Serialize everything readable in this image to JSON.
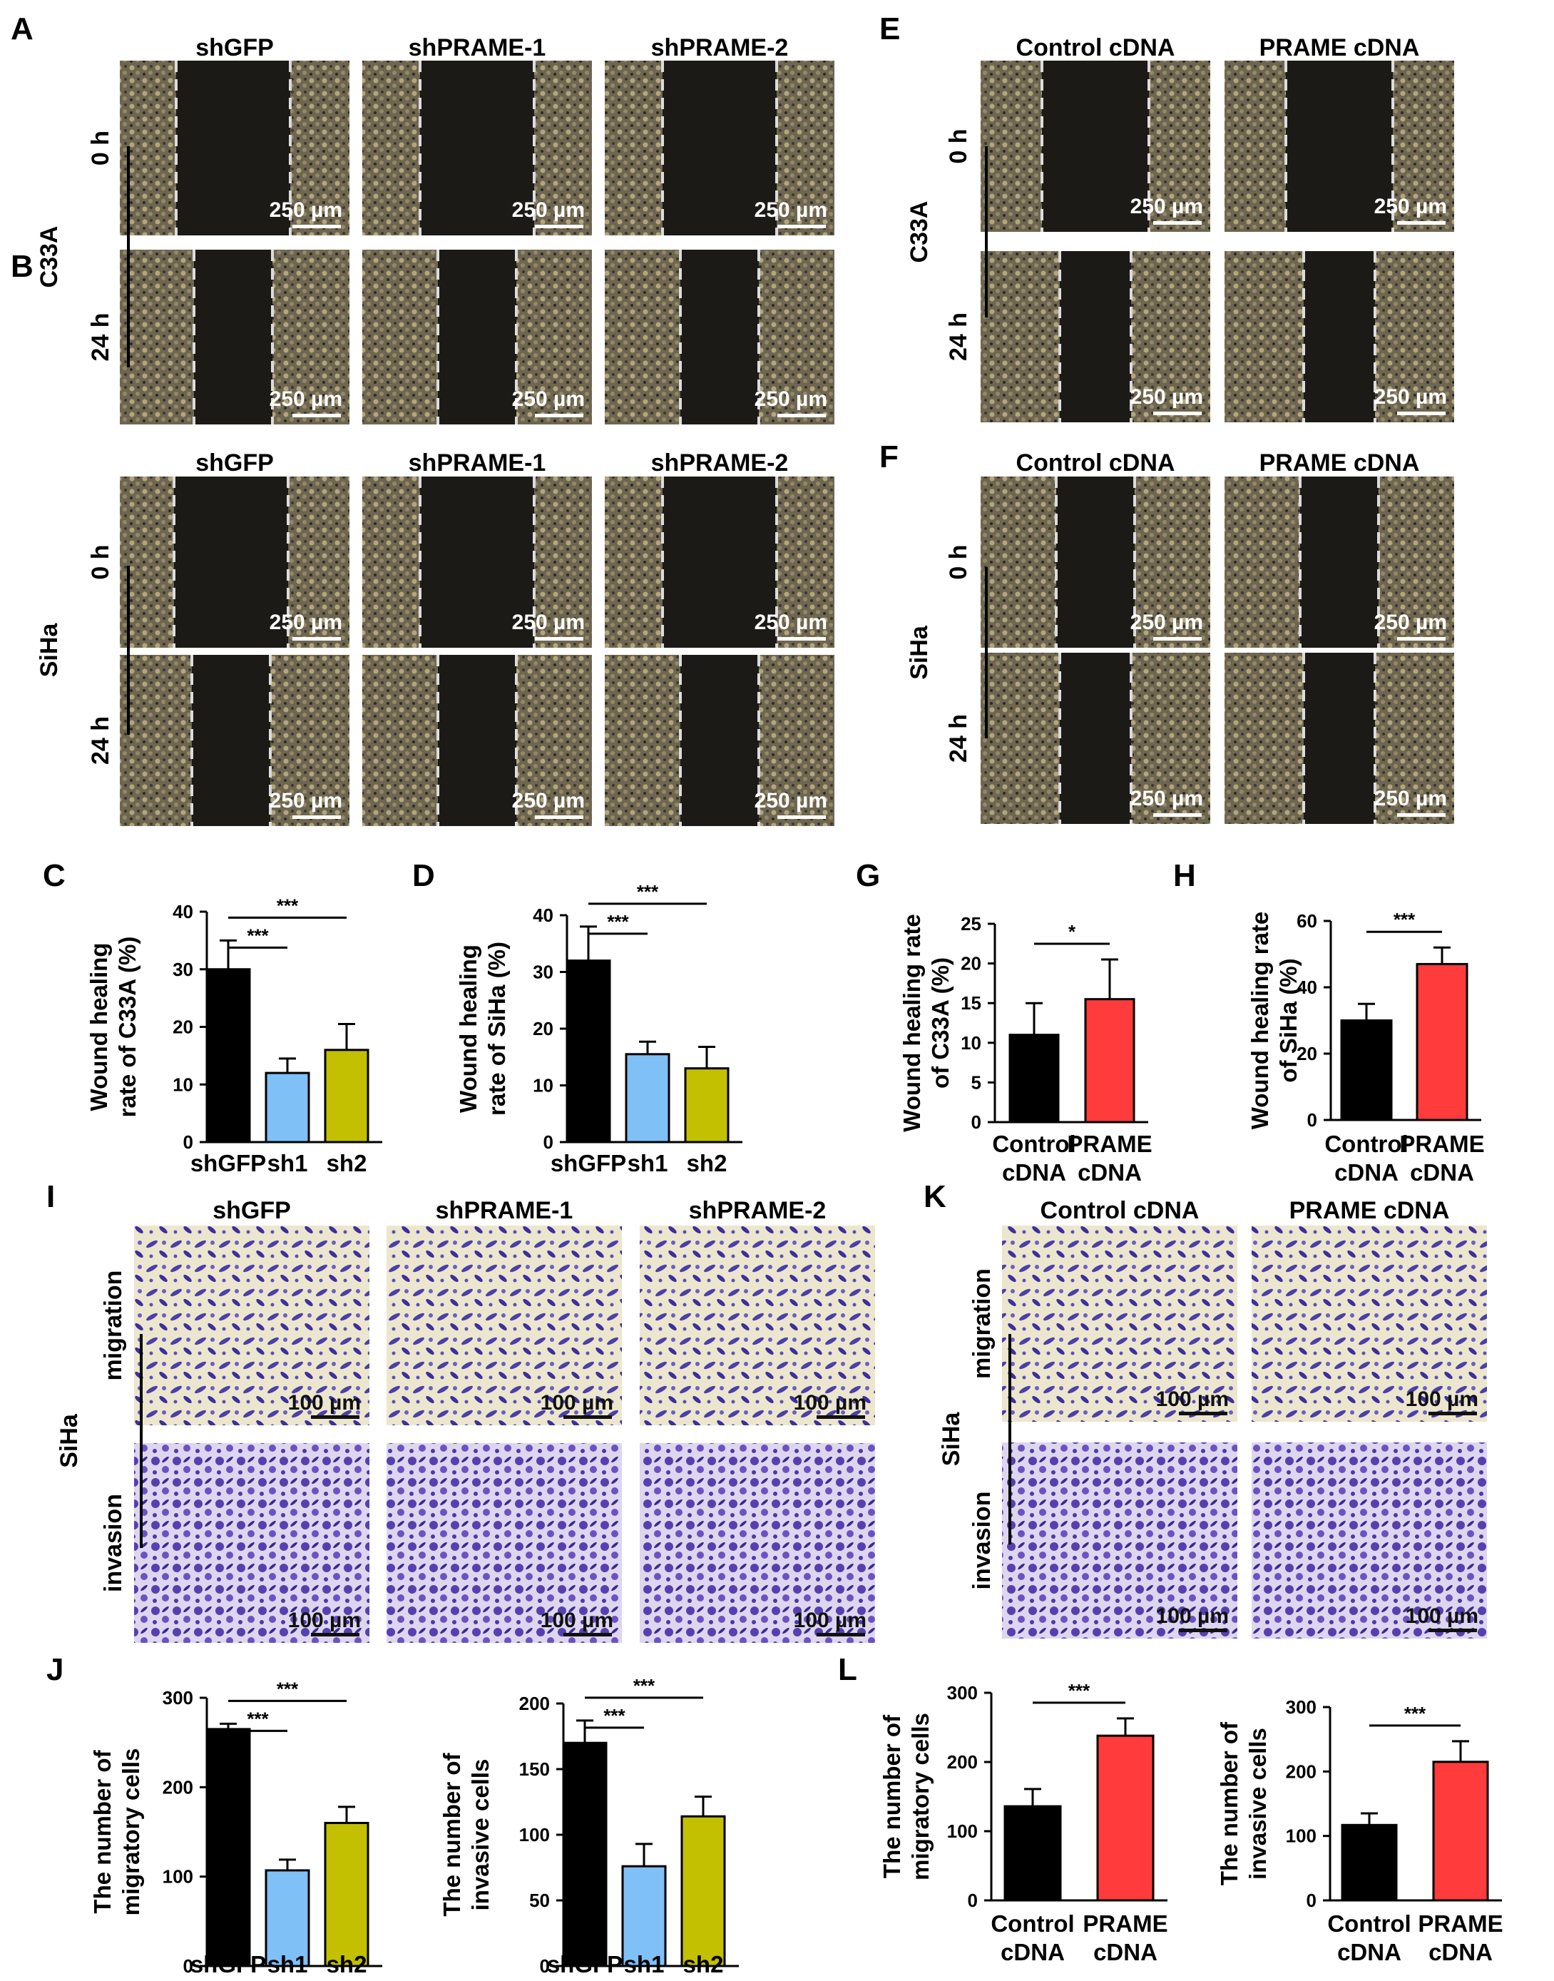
{
  "panels": [
    "A",
    "B",
    "C",
    "D",
    "E",
    "F",
    "G",
    "H",
    "I",
    "J",
    "K",
    "L"
  ],
  "images": {
    "kd_cols": [
      "shGFP",
      "shPRAME-1",
      "shPRAME-2"
    ],
    "oe_cols": [
      "Control cDNA",
      "PRAME cDNA"
    ],
    "times": [
      "0 h",
      "24 h"
    ],
    "transwell_rows": [
      "migration",
      "invasion"
    ],
    "cell_c33a": "C33A",
    "cell_siha": "SiHa",
    "scale_wound": "250 µm",
    "scale_transwell": "100 µm"
  },
  "chart_data": [
    {
      "id": "C",
      "type": "bar",
      "ylabel": "Wound healing rate of C33A (%)",
      "ylabel_lines": [
        "Wound healing",
        "rate of C33A (%)"
      ],
      "categories": [
        "shGFP",
        "sh1",
        "sh2"
      ],
      "values": [
        30,
        12,
        16
      ],
      "errors": [
        5,
        2.5,
        4.5
      ],
      "colors": [
        "#000000",
        "#7fc0f7",
        "#c2c000"
      ],
      "ylim": [
        0,
        40
      ],
      "yticks": [
        "0",
        "10",
        "20",
        "30",
        "40"
      ],
      "sig": [
        "***",
        "***"
      ]
    },
    {
      "id": "D",
      "type": "bar",
      "ylabel": "Wound healing rate of SiHa (%)",
      "ylabel_lines": [
        "Wound healing",
        "rate of SiHa (%)"
      ],
      "categories": [
        "shGFP",
        "sh1",
        "sh2"
      ],
      "values": [
        32,
        15.5,
        13
      ],
      "errors": [
        6,
        2.2,
        3.8
      ],
      "colors": [
        "#000000",
        "#7fc0f7",
        "#c2c000"
      ],
      "ylim": [
        0,
        40
      ],
      "yticks": [
        "0",
        "10",
        "20",
        "30",
        "40"
      ],
      "sig": [
        "***",
        "***"
      ]
    },
    {
      "id": "G",
      "type": "bar",
      "ylabel": "Wound healing rate of C33A (%)",
      "ylabel_lines": [
        "Wound healing rate",
        "of C33A (%)"
      ],
      "categories": [
        "Control cDNA",
        "PRAME cDNA"
      ],
      "cat_lines": [
        [
          "Control",
          "cDNA"
        ],
        [
          "PRAME",
          "cDNA"
        ]
      ],
      "values": [
        11,
        15.5
      ],
      "errors": [
        4,
        5
      ],
      "colors": [
        "#000000",
        "#ff3b3b"
      ],
      "ylim": [
        0,
        25
      ],
      "yticks": [
        "0",
        "5",
        "10",
        "15",
        "20",
        "25"
      ],
      "sig": [
        "*"
      ]
    },
    {
      "id": "H",
      "type": "bar",
      "ylabel": "Wound healing rate of SiHa (%)",
      "ylabel_lines": [
        "Wound healing rate",
        "of SiHa (%)"
      ],
      "categories": [
        "Control cDNA",
        "PRAME cDNA"
      ],
      "cat_lines": [
        [
          "Control",
          "cDNA"
        ],
        [
          "PRAME",
          "cDNA"
        ]
      ],
      "values": [
        30,
        47
      ],
      "errors": [
        5,
        5
      ],
      "colors": [
        "#000000",
        "#ff3b3b"
      ],
      "ylim": [
        0,
        60
      ],
      "yticks": [
        "0",
        "20",
        "40",
        "60"
      ],
      "sig": [
        "***"
      ]
    },
    {
      "id": "J1",
      "type": "bar",
      "ylabel": "The number of migratory cells",
      "ylabel_lines": [
        "The number of",
        "migratory cells"
      ],
      "categories": [
        "shGFP",
        "sh1",
        "sh2"
      ],
      "values": [
        265,
        107,
        160
      ],
      "errors": [
        6,
        12,
        18
      ],
      "colors": [
        "#000000",
        "#7fc0f7",
        "#c2c000"
      ],
      "ylim": [
        0,
        300
      ],
      "yticks": [
        "0",
        "100",
        "200",
        "300"
      ],
      "sig": [
        "***",
        "***"
      ]
    },
    {
      "id": "J2",
      "type": "bar",
      "ylabel": "The number of invasive cells",
      "ylabel_lines": [
        "The number of",
        "invasive cells"
      ],
      "categories": [
        "shGFP",
        "sh1",
        "sh2"
      ],
      "values": [
        170,
        76,
        114
      ],
      "errors": [
        17,
        17,
        15
      ],
      "colors": [
        "#000000",
        "#7fc0f7",
        "#c2c000"
      ],
      "ylim": [
        0,
        200
      ],
      "yticks": [
        "0",
        "50",
        "100",
        "150",
        "200"
      ],
      "sig": [
        "***",
        "***"
      ]
    },
    {
      "id": "L1",
      "type": "bar",
      "ylabel": "The number of migratory cells",
      "ylabel_lines": [
        "The number of",
        "migratory cells"
      ],
      "categories": [
        "Control cDNA",
        "PRAME cDNA"
      ],
      "cat_lines": [
        [
          "Control",
          "cDNA"
        ],
        [
          "PRAME",
          "cDNA"
        ]
      ],
      "values": [
        136,
        238
      ],
      "errors": [
        25,
        25
      ],
      "colors": [
        "#000000",
        "#ff3b3b"
      ],
      "ylim": [
        0,
        300
      ],
      "yticks": [
        "0",
        "100",
        "200",
        "300"
      ],
      "sig": [
        "***"
      ]
    },
    {
      "id": "L2",
      "type": "bar",
      "ylabel": "The number of invasive cells",
      "ylabel_lines": [
        "The number of",
        "invasive cells"
      ],
      "categories": [
        "Control cDNA",
        "PRAME cDNA"
      ],
      "cat_lines": [
        [
          "Control",
          "cDNA"
        ],
        [
          "PRAME",
          "cDNA"
        ]
      ],
      "values": [
        117,
        215
      ],
      "errors": [
        18,
        32
      ],
      "colors": [
        "#000000",
        "#ff3b3b"
      ],
      "ylim": [
        0,
        300
      ],
      "yticks": [
        "0",
        "100",
        "200",
        "300"
      ],
      "sig": [
        "***"
      ]
    }
  ]
}
